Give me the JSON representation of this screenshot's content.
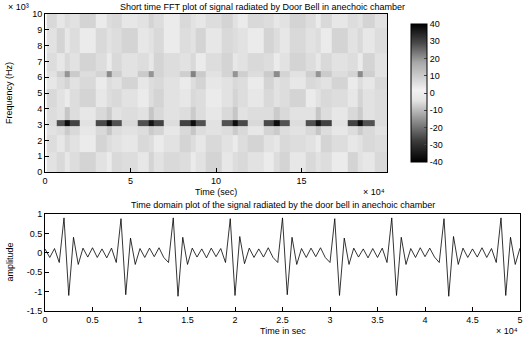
{
  "chart_data": [
    {
      "type": "heatmap",
      "title": "Short time FFT plot of signal radiated by Door Bell in anechoic chamber",
      "xlabel": "Time (sec)",
      "ylabel": "Frequency (Hz)",
      "x_multiplier": "× 10⁴",
      "y_multiplier": "× 10³",
      "x": [
        0.4,
        1.0,
        1.3,
        1.6,
        2.5,
        3.45,
        3.75,
        4.05,
        4.95,
        5.9,
        6.2,
        6.5,
        7.4,
        8.35,
        8.65,
        8.95,
        9.85,
        10.8,
        11.1,
        11.4,
        12.3,
        13.25,
        13.55,
        13.85,
        14.75,
        15.7,
        16.0,
        16.3,
        17.2,
        18.15,
        18.45,
        18.75,
        19.8
      ],
      "y": [
        0.5,
        2,
        2.7,
        3.1,
        3.5,
        4.7,
        5.8,
        6.2,
        6.6,
        8.5,
        9.75
      ],
      "cells": [
        [
          5,
          7,
          4,
          6,
          8,
          5,
          3,
          7,
          6,
          4,
          8,
          5,
          7,
          6,
          3,
          5,
          8,
          4,
          6,
          7,
          5,
          3,
          6,
          8,
          4,
          7,
          5,
          6,
          3,
          8,
          5,
          4,
          7
        ],
        [
          6,
          4,
          7,
          5,
          3,
          8,
          6,
          5,
          4,
          7,
          6,
          3,
          5,
          8,
          6,
          4,
          7,
          5,
          3,
          6,
          8,
          5,
          4,
          7,
          6,
          5,
          3,
          8,
          6,
          4,
          5,
          7,
          6
        ],
        [
          5,
          6,
          10,
          7,
          4,
          7,
          11,
          6,
          5,
          6,
          10,
          8,
          4,
          7,
          11,
          6,
          5,
          6,
          10,
          7,
          4,
          8,
          10,
          6,
          5,
          7,
          11,
          6,
          4,
          6,
          10,
          7,
          5
        ],
        [
          6,
          28,
          38,
          30,
          5,
          29,
          38,
          28,
          7,
          28,
          37,
          30,
          6,
          30,
          38,
          28,
          5,
          28,
          38,
          29,
          7,
          29,
          38,
          28,
          6,
          28,
          37,
          30,
          5,
          30,
          38,
          28,
          6
        ],
        [
          6,
          5,
          11,
          6,
          4,
          7,
          10,
          5,
          6,
          5,
          11,
          7,
          5,
          6,
          10,
          6,
          4,
          7,
          11,
          5,
          6,
          6,
          10,
          7,
          5,
          5,
          11,
          6,
          4,
          7,
          10,
          5,
          6
        ],
        [
          7,
          5,
          3,
          6,
          8,
          4,
          6,
          7,
          5,
          3,
          6,
          8,
          5,
          4,
          7,
          6,
          3,
          5,
          8,
          6,
          4,
          7,
          5,
          6,
          8,
          3,
          5,
          7,
          6,
          4,
          8,
          5,
          6
        ],
        [
          4,
          6,
          8,
          5,
          7,
          3,
          6,
          5,
          8,
          4,
          6,
          7,
          5,
          3,
          6,
          8,
          4,
          5,
          7,
          6,
          3,
          8,
          5,
          6,
          4,
          7,
          6,
          5,
          8,
          3,
          6,
          4,
          7
        ],
        [
          5,
          9,
          20,
          10,
          6,
          8,
          21,
          9,
          5,
          10,
          20,
          8,
          6,
          9,
          22,
          10,
          5,
          8,
          20,
          9,
          6,
          10,
          21,
          8,
          5,
          9,
          20,
          10,
          6,
          8,
          21,
          9,
          5
        ],
        [
          6,
          4,
          7,
          5,
          8,
          6,
          3,
          7,
          5,
          6,
          4,
          8,
          6,
          5,
          7,
          3,
          6,
          8,
          4,
          5,
          7,
          6,
          3,
          5,
          8,
          6,
          4,
          7,
          5,
          6,
          3,
          8,
          5
        ],
        [
          5,
          8,
          4,
          6,
          3,
          7,
          5,
          6,
          8,
          4,
          5,
          7,
          3,
          6,
          5,
          8,
          4,
          7,
          6,
          5,
          3,
          8,
          6,
          4,
          7,
          5,
          6,
          3,
          8,
          5,
          7,
          4,
          6
        ],
        [
          7,
          4,
          6,
          5,
          8,
          3,
          6,
          7,
          4,
          5,
          8,
          6,
          3,
          7,
          5,
          4,
          6,
          8,
          5,
          3,
          7,
          6,
          4,
          5,
          8,
          6,
          3,
          7,
          4,
          6,
          5,
          8,
          5
        ]
      ],
      "xlim": [
        0,
        20
      ],
      "xticks": [
        0,
        5,
        10,
        15
      ],
      "ylim": [
        0,
        10
      ],
      "yticks": [
        0,
        1,
        2,
        3,
        4,
        5,
        6,
        7,
        8,
        9,
        10
      ],
      "colorbar": {
        "range": [
          -40,
          40
        ],
        "ticks": [
          -40,
          -30,
          -20,
          -10,
          0,
          10,
          20,
          30,
          40
        ]
      },
      "grid": false
    },
    {
      "type": "line",
      "title": "Time domain plot of the signal radiated by the door bell in anechoic chamber",
      "xlabel": "Time in sec",
      "ylabel": "amplitude",
      "x_multiplier": "× 10⁴",
      "color": "#000000",
      "x": [
        0,
        0.05,
        0.1,
        0.15,
        0.2,
        0.25,
        0.3,
        0.35,
        0.4,
        0.45,
        0.5,
        0.55,
        0.6,
        0.65,
        0.7,
        0.75,
        0.8,
        0.85,
        0.9,
        0.95,
        1,
        1.05,
        1.1,
        1.15,
        1.2,
        1.25,
        1.3,
        1.35,
        1.4,
        1.45,
        1.5,
        1.55,
        1.6,
        1.65,
        1.7,
        1.75,
        1.8,
        1.85,
        1.9,
        1.95,
        2,
        2.05,
        2.1,
        2.15,
        2.2,
        2.25,
        2.3,
        2.35,
        2.4,
        2.45,
        2.5,
        2.55,
        2.6,
        2.65,
        2.7,
        2.75,
        2.8,
        2.85,
        2.9,
        2.95,
        3,
        3.05,
        3.1,
        3.15,
        3.2,
        3.25,
        3.3,
        3.35,
        3.4,
        3.45,
        3.5,
        3.55,
        3.6,
        3.65,
        3.7,
        3.75,
        3.8,
        3.85,
        3.9,
        3.95,
        4,
        4.05,
        4.1,
        4.15,
        4.2,
        4.25,
        4.3,
        4.35,
        4.4,
        4.45,
        4.5,
        4.55,
        4.6,
        4.65,
        4.7,
        4.75,
        4.8,
        4.85,
        4.9,
        4.95,
        5
      ],
      "values": [
        0.1,
        -0.12,
        0.11,
        -0.25,
        0.9,
        -1.1,
        0.4,
        -0.3,
        0.12,
        -0.11,
        0.13,
        -0.12,
        0.1,
        -0.13,
        0.12,
        -0.25,
        0.88,
        -1.08,
        0.38,
        -0.3,
        0.11,
        -0.12,
        0.12,
        -0.1,
        0.13,
        -0.12,
        -0.25,
        0.9,
        -1.12,
        0.4,
        -0.3,
        0.12,
        -0.11,
        0.1,
        -0.13,
        0.12,
        -0.1,
        0.11,
        -0.25,
        0.88,
        -1.1,
        0.42,
        -0.28,
        0.12,
        -0.12,
        0.1,
        -0.11,
        0.13,
        -0.12,
        -0.25,
        0.9,
        -1.08,
        0.4,
        -0.3,
        0.11,
        -0.12,
        0.12,
        -0.1,
        0.13,
        -0.12,
        -0.25,
        0.88,
        -1.1,
        0.38,
        -0.3,
        0.12,
        -0.11,
        0.1,
        -0.13,
        0.11,
        -0.12,
        0.12,
        -0.25,
        0.9,
        -1.1,
        0.4,
        -0.3,
        0.11,
        -0.12,
        0.13,
        -0.1,
        0.12,
        -0.11,
        -0.25,
        0.88,
        -1.12,
        0.42,
        -0.3,
        0.12,
        -0.12,
        0.1,
        -0.11,
        0.13,
        -0.12,
        0.11,
        -0.25,
        0.9,
        -1.1,
        0.4,
        -0.3,
        0.12
      ],
      "xlim": [
        0,
        5
      ],
      "xticks": [
        0,
        0.5,
        1,
        1.5,
        2,
        2.5,
        3,
        3.5,
        4,
        4.5,
        5
      ],
      "ylim": [
        -1.5,
        1
      ],
      "yticks": [
        -1.5,
        -1,
        -0.5,
        0,
        0.5,
        1
      ],
      "grid": false
    }
  ]
}
